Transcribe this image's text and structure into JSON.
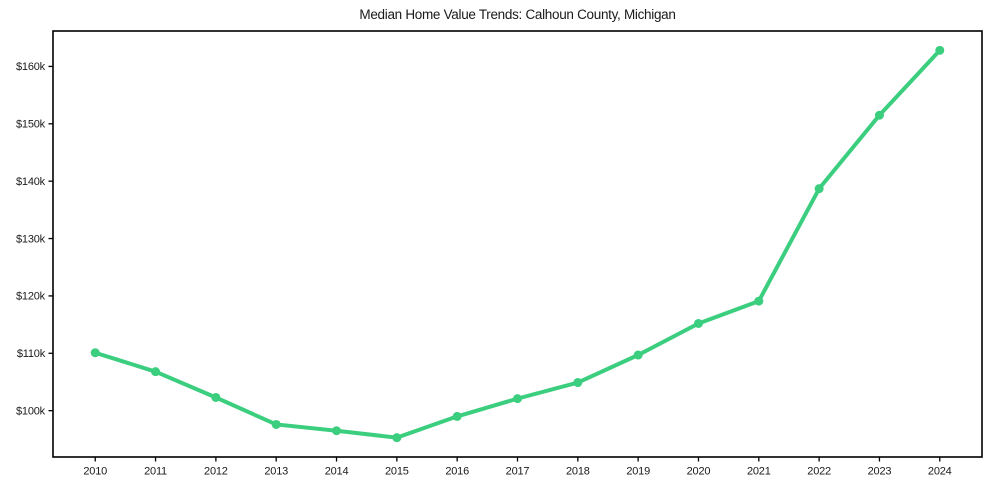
{
  "page": {
    "background": "#ffffff"
  },
  "chart_data": {
    "type": "line",
    "title": "Median Home Value Trends: Calhoun County, Michigan",
    "xlabel": "",
    "ylabel": "",
    "x": [
      2010,
      2011,
      2012,
      2013,
      2014,
      2015,
      2016,
      2017,
      2018,
      2019,
      2020,
      2021,
      2022,
      2023,
      2024
    ],
    "series": [
      {
        "name": "median-home-value-usd",
        "values": [
          110100,
          106800,
          102300,
          97600,
          96500,
          95300,
          99000,
          102100,
          104900,
          109700,
          115200,
          119100,
          138700,
          151500,
          162800
        ],
        "color": "#3bce7e",
        "line_width": 4,
        "marker": "circle",
        "marker_diameter": 9
      }
    ],
    "xlim": [
      2009.3,
      2024.7
    ],
    "ylim": [
      91925,
      166175
    ],
    "xticks": {
      "values": [
        2010,
        2011,
        2012,
        2013,
        2014,
        2015,
        2016,
        2017,
        2018,
        2019,
        2020,
        2021,
        2022,
        2023,
        2024
      ],
      "labels": [
        "2010",
        "2011",
        "2012",
        "2013",
        "2014",
        "2015",
        "2016",
        "2017",
        "2018",
        "2019",
        "2020",
        "2021",
        "2022",
        "2023",
        "2024"
      ]
    },
    "yticks": {
      "values": [
        100000,
        110000,
        120000,
        130000,
        140000,
        150000,
        160000
      ],
      "labels": [
        "$100k",
        "$110k",
        "$120k",
        "$130k",
        "$140k",
        "$150k",
        "$160k"
      ]
    },
    "grid": false,
    "legend": false,
    "spine_color": "#000000",
    "tick_color": "#000000",
    "tick_label_color": "#1a1a1a",
    "title_color": "#1a1a1a"
  }
}
